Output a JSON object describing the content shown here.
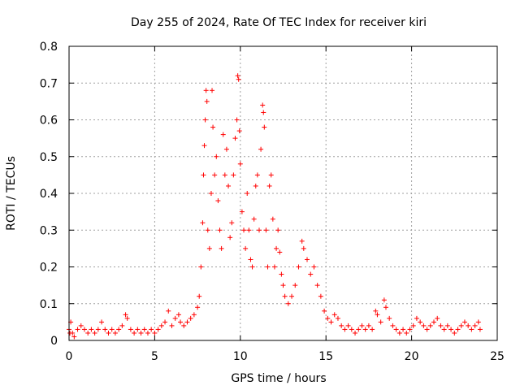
{
  "chart_data": {
    "type": "scatter",
    "title": "Day 255 of 2024, Rate Of TEC Index for receiver kiri",
    "xlabel": "GPS time / hours",
    "ylabel": "ROTI / TECUs",
    "xlim": [
      0,
      25
    ],
    "ylim": [
      0,
      0.8
    ],
    "xticks": [
      "0",
      "5",
      "10",
      "15",
      "20",
      "25"
    ],
    "yticks": [
      "0",
      "0.1",
      "0.2",
      "0.3",
      "0.4",
      "0.5",
      "0.6",
      "0.7",
      "0.8"
    ],
    "grid": true,
    "marker": "+",
    "color": "#ff0000",
    "series": [
      {
        "points": [
          [
            0.0,
            0.03
          ],
          [
            0.05,
            0.02
          ],
          [
            0.1,
            0.05
          ],
          [
            0.2,
            0.02
          ],
          [
            0.3,
            0.01
          ],
          [
            0.5,
            0.03
          ],
          [
            0.7,
            0.04
          ],
          [
            0.9,
            0.03
          ],
          [
            1.1,
            0.02
          ],
          [
            1.3,
            0.03
          ],
          [
            1.5,
            0.02
          ],
          [
            1.7,
            0.03
          ],
          [
            1.9,
            0.05
          ],
          [
            2.1,
            0.03
          ],
          [
            2.3,
            0.02
          ],
          [
            2.5,
            0.03
          ],
          [
            2.7,
            0.02
          ],
          [
            2.9,
            0.03
          ],
          [
            3.1,
            0.04
          ],
          [
            3.3,
            0.07
          ],
          [
            3.4,
            0.06
          ],
          [
            3.6,
            0.03
          ],
          [
            3.8,
            0.02
          ],
          [
            4.0,
            0.03
          ],
          [
            4.2,
            0.02
          ],
          [
            4.4,
            0.03
          ],
          [
            4.6,
            0.02
          ],
          [
            4.8,
            0.03
          ],
          [
            5.0,
            0.02
          ],
          [
            5.2,
            0.03
          ],
          [
            5.4,
            0.04
          ],
          [
            5.6,
            0.05
          ],
          [
            5.8,
            0.08
          ],
          [
            6.0,
            0.04
          ],
          [
            6.2,
            0.06
          ],
          [
            6.4,
            0.07
          ],
          [
            6.5,
            0.05
          ],
          [
            6.7,
            0.04
          ],
          [
            6.9,
            0.05
          ],
          [
            7.1,
            0.06
          ],
          [
            7.3,
            0.07
          ],
          [
            7.5,
            0.09
          ],
          [
            7.6,
            0.12
          ],
          [
            7.7,
            0.2
          ],
          [
            7.8,
            0.32
          ],
          [
            7.85,
            0.45
          ],
          [
            7.9,
            0.53
          ],
          [
            7.95,
            0.6
          ],
          [
            8.0,
            0.68
          ],
          [
            8.05,
            0.65
          ],
          [
            8.1,
            0.3
          ],
          [
            8.2,
            0.25
          ],
          [
            8.3,
            0.4
          ],
          [
            8.35,
            0.68
          ],
          [
            8.4,
            0.58
          ],
          [
            8.5,
            0.45
          ],
          [
            8.6,
            0.5
          ],
          [
            8.7,
            0.38
          ],
          [
            8.8,
            0.3
          ],
          [
            8.9,
            0.25
          ],
          [
            9.0,
            0.56
          ],
          [
            9.1,
            0.45
          ],
          [
            9.2,
            0.52
          ],
          [
            9.3,
            0.42
          ],
          [
            9.4,
            0.28
          ],
          [
            9.5,
            0.32
          ],
          [
            9.6,
            0.45
          ],
          [
            9.7,
            0.55
          ],
          [
            9.8,
            0.6
          ],
          [
            9.85,
            0.72
          ],
          [
            9.9,
            0.71
          ],
          [
            9.95,
            0.57
          ],
          [
            10.0,
            0.48
          ],
          [
            10.1,
            0.35
          ],
          [
            10.2,
            0.3
          ],
          [
            10.3,
            0.25
          ],
          [
            10.4,
            0.4
          ],
          [
            10.5,
            0.3
          ],
          [
            10.6,
            0.22
          ],
          [
            10.7,
            0.2
          ],
          [
            10.8,
            0.33
          ],
          [
            10.9,
            0.42
          ],
          [
            11.0,
            0.45
          ],
          [
            11.1,
            0.3
          ],
          [
            11.2,
            0.52
          ],
          [
            11.3,
            0.64
          ],
          [
            11.35,
            0.62
          ],
          [
            11.4,
            0.58
          ],
          [
            11.5,
            0.3
          ],
          [
            11.6,
            0.2
          ],
          [
            11.7,
            0.42
          ],
          [
            11.8,
            0.45
          ],
          [
            11.9,
            0.33
          ],
          [
            12.0,
            0.2
          ],
          [
            12.1,
            0.25
          ],
          [
            12.2,
            0.3
          ],
          [
            12.3,
            0.24
          ],
          [
            12.4,
            0.18
          ],
          [
            12.5,
            0.15
          ],
          [
            12.6,
            0.12
          ],
          [
            12.8,
            0.1
          ],
          [
            13.0,
            0.12
          ],
          [
            13.2,
            0.15
          ],
          [
            13.4,
            0.2
          ],
          [
            13.6,
            0.27
          ],
          [
            13.7,
            0.25
          ],
          [
            13.9,
            0.22
          ],
          [
            14.1,
            0.18
          ],
          [
            14.3,
            0.2
          ],
          [
            14.5,
            0.15
          ],
          [
            14.7,
            0.12
          ],
          [
            14.9,
            0.08
          ],
          [
            15.1,
            0.06
          ],
          [
            15.3,
            0.05
          ],
          [
            15.5,
            0.07
          ],
          [
            15.7,
            0.06
          ],
          [
            15.9,
            0.04
          ],
          [
            16.1,
            0.03
          ],
          [
            16.3,
            0.04
          ],
          [
            16.5,
            0.03
          ],
          [
            16.7,
            0.02
          ],
          [
            16.9,
            0.03
          ],
          [
            17.1,
            0.04
          ],
          [
            17.3,
            0.03
          ],
          [
            17.5,
            0.04
          ],
          [
            17.7,
            0.03
          ],
          [
            17.9,
            0.08
          ],
          [
            18.0,
            0.07
          ],
          [
            18.2,
            0.05
          ],
          [
            18.4,
            0.11
          ],
          [
            18.5,
            0.09
          ],
          [
            18.7,
            0.06
          ],
          [
            18.9,
            0.04
          ],
          [
            19.1,
            0.03
          ],
          [
            19.3,
            0.02
          ],
          [
            19.5,
            0.03
          ],
          [
            19.7,
            0.02
          ],
          [
            19.9,
            0.03
          ],
          [
            20.1,
            0.04
          ],
          [
            20.3,
            0.06
          ],
          [
            20.5,
            0.05
          ],
          [
            20.7,
            0.04
          ],
          [
            20.9,
            0.03
          ],
          [
            21.1,
            0.04
          ],
          [
            21.3,
            0.05
          ],
          [
            21.5,
            0.06
          ],
          [
            21.7,
            0.04
          ],
          [
            21.9,
            0.03
          ],
          [
            22.1,
            0.04
          ],
          [
            22.3,
            0.03
          ],
          [
            22.5,
            0.02
          ],
          [
            22.7,
            0.03
          ],
          [
            22.9,
            0.04
          ],
          [
            23.1,
            0.05
          ],
          [
            23.3,
            0.04
          ],
          [
            23.5,
            0.03
          ],
          [
            23.7,
            0.04
          ],
          [
            23.9,
            0.05
          ],
          [
            24.0,
            0.03
          ]
        ]
      }
    ]
  }
}
